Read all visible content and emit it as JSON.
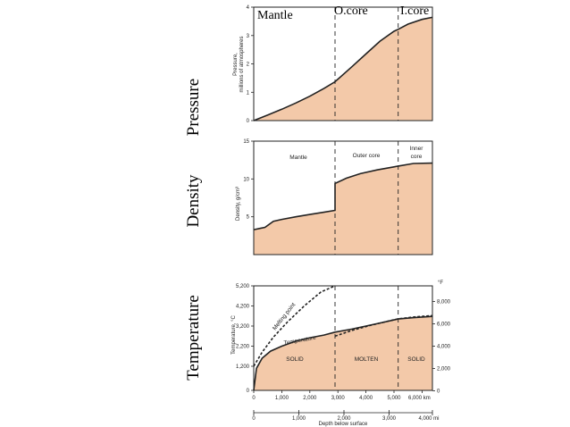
{
  "chart_data": [
    {
      "type": "area",
      "title": "Pressure",
      "ylabel": [
        "Pressure,",
        "millions of atmospheres"
      ],
      "ylim": [
        0,
        4
      ],
      "xlim_km": [
        0,
        6371
      ],
      "yticks": [
        "0",
        "1",
        "2",
        "3",
        "4"
      ],
      "regions": [
        {
          "name": "mantle",
          "label": "Mantle",
          "x_km": 500
        },
        {
          "name": "outer-core",
          "label": "O.core",
          "x_km": 3300
        },
        {
          "name": "inner-core",
          "label": "I.core",
          "x_km": 5700
        }
      ],
      "boundaries_km": [
        2900,
        5150
      ],
      "x_km": [
        0,
        500,
        1000,
        1500,
        2000,
        2500,
        2900,
        3500,
        4000,
        4500,
        5000,
        5150,
        5500,
        6000,
        6371
      ],
      "values": [
        0,
        0.2,
        0.4,
        0.62,
        0.86,
        1.13,
        1.37,
        1.9,
        2.35,
        2.8,
        3.15,
        3.22,
        3.4,
        3.57,
        3.64
      ]
    },
    {
      "type": "area",
      "title": "Density",
      "ylabel": "Density, g/cm³",
      "ylim": [
        0,
        15
      ],
      "xlim_km": [
        0,
        6371
      ],
      "yticks": [
        "5",
        "10",
        "15"
      ],
      "regions": [
        {
          "name": "mantle",
          "label": "Mantle",
          "x_km": 1600
        },
        {
          "name": "outer-core",
          "label": "Outer core",
          "x_km": 4000
        },
        {
          "name": "inner-core",
          "label": [
            "Inner",
            "core"
          ],
          "x_km": 5760
        }
      ],
      "boundaries_km": [
        2900,
        5150
      ],
      "x_km": [
        0,
        200,
        400,
        700,
        1000,
        1500,
        2000,
        2500,
        2900,
        2900,
        3300,
        3800,
        4400,
        5000,
        5150,
        5700,
        6371
      ],
      "values": [
        3.3,
        3.45,
        3.6,
        4.4,
        4.65,
        5.0,
        5.3,
        5.6,
        5.85,
        9.4,
        10.1,
        10.7,
        11.2,
        11.6,
        11.7,
        12.05,
        12.1
      ]
    },
    {
      "type": "line",
      "title": "Temperature",
      "ylabel": "Temperature, °C",
      "ylim_c": [
        0,
        5200
      ],
      "xlim_km": [
        0,
        6371
      ],
      "yticks_c": [
        "0",
        "1,200",
        "2,200",
        "3,200",
        "4,200",
        "5,200"
      ],
      "yticks_f_symbol": "°F",
      "yticks_f": [
        "0",
        "2,000",
        "4,000",
        "6,000",
        "8,000"
      ],
      "xticks_km": [
        "0",
        "1,000",
        "2,000",
        "3,000",
        "4,000",
        "5,000",
        "6,000 km"
      ],
      "xticks_mi": [
        "0",
        "1,000",
        "2,000",
        "3,000",
        "4,000 mi"
      ],
      "xlabel": "Depth below surface",
      "regions": [
        {
          "name": "solid-mantle",
          "label": "SOLID",
          "x_km": 1600
        },
        {
          "name": "molten",
          "label": "MOLTEN",
          "x_km": 4000
        },
        {
          "name": "solid-core",
          "label": "SOLID",
          "x_km": 5760
        }
      ],
      "boundaries_km": [
        2900,
        5150
      ],
      "series": [
        {
          "name": "Temperature",
          "label": "Temperature",
          "x_km": [
            0,
            100,
            300,
            600,
            1000,
            1500,
            2000,
            2500,
            2900,
            3500,
            4000,
            4500,
            5150,
            5700,
            6371
          ],
          "values": [
            0,
            1100,
            1600,
            1950,
            2200,
            2450,
            2620,
            2750,
            2900,
            3050,
            3200,
            3350,
            3550,
            3620,
            3680
          ]
        },
        {
          "name": "Melting point",
          "label": "Melting point",
          "x_km": [
            0,
            300,
            700,
            1200,
            1800,
            2400,
            2900
          ],
          "values": [
            1200,
            1900,
            2650,
            3400,
            4200,
            4900,
            5450
          ]
        },
        {
          "name": "Melting point core",
          "label": "",
          "x_km": [
            2900,
            3500,
            4200,
            4800,
            5150,
            5700,
            6371
          ],
          "values": [
            2700,
            2980,
            3250,
            3450,
            3560,
            3650,
            3720
          ]
        }
      ]
    }
  ]
}
